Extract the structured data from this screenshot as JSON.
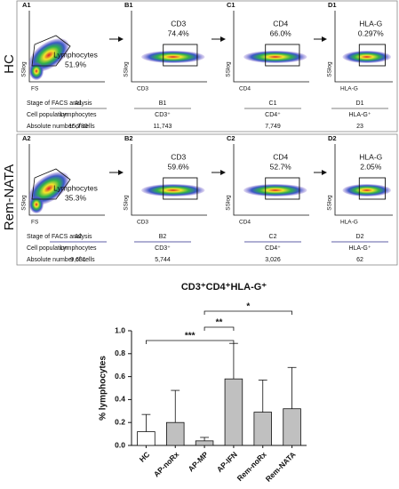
{
  "sections": [
    {
      "label": "HC",
      "plots": [
        {
          "id": "A1",
          "x_label": "FS",
          "y_label": "SSlog",
          "gate": "Lymphocytes",
          "percent": "51.9%"
        },
        {
          "id": "B1",
          "x_label": "CD3",
          "y_label": "SSlog",
          "gate": "CD3",
          "percent": "74.4%"
        },
        {
          "id": "C1",
          "x_label": "CD4",
          "y_label": "SSlog",
          "gate": "CD4",
          "percent": "66.0%"
        },
        {
          "id": "D1",
          "x_label": "HLA-G",
          "y_label": "SSlog",
          "gate": "HLA-G",
          "percent": "0.297%"
        }
      ],
      "table": [
        [
          "Stage of FACS analysis",
          "A1",
          "B1",
          "C1",
          "D1"
        ],
        [
          "Cell population",
          "Lymphocytes",
          "CD3⁺",
          "CD4⁺",
          "HLA-G⁺"
        ],
        [
          "Absolute number of cells",
          "15,780",
          "11,743",
          "7,749",
          "23"
        ]
      ]
    },
    {
      "label": "Rem-NATA",
      "plots": [
        {
          "id": "A2",
          "x_label": "FS",
          "y_label": "SSlog",
          "gate": "Lymphocytes",
          "percent": "35.3%"
        },
        {
          "id": "B2",
          "x_label": "CD3",
          "y_label": "SSlog",
          "gate": "CD3",
          "percent": "59.6%"
        },
        {
          "id": "C2",
          "x_label": "CD4",
          "y_label": "SSlog",
          "gate": "CD4",
          "percent": "52.7%"
        },
        {
          "id": "D2",
          "x_label": "HLA-G",
          "y_label": "SSlog",
          "gate": "HLA-G",
          "percent": "2.05%"
        }
      ],
      "table": [
        [
          "Stage of FACS analysis",
          "A2",
          "B2",
          "C2",
          "D2"
        ],
        [
          "Cell population",
          "Lymphocytes",
          "CD3⁺",
          "CD4⁺",
          "HLA-G⁺"
        ],
        [
          "Absolute number of cells",
          "9,631",
          "5,744",
          "3,026",
          "62"
        ]
      ]
    }
  ],
  "chart_data": {
    "type": "bar",
    "title": "CD3⁺CD4⁺HLA-G⁺",
    "y_label": "% lymphocytes",
    "categories": [
      "HC",
      "AP-noRx",
      "AP-MP",
      "AP-IFN",
      "Rem-noRx",
      "Rem-NATA"
    ],
    "values": [
      0.12,
      0.2,
      0.04,
      0.58,
      0.29,
      0.32
    ],
    "errors": [
      0.15,
      0.28,
      0.03,
      0.31,
      0.28,
      0.36
    ],
    "colors": [
      "#ffffff",
      "#c0c0c0",
      "#c0c0c0",
      "#c0c0c0",
      "#c0c0c0",
      "#c0c0c0"
    ],
    "ylim": [
      0,
      1
    ],
    "yticks": [
      {
        "value": 0,
        "label": "0.0"
      },
      {
        "value": 0.2,
        "label": "0.2"
      },
      {
        "value": 0.4,
        "label": "0.4"
      },
      {
        "value": 0.6,
        "label": "0.6"
      },
      {
        "value": 0.8,
        "label": "0.8"
      },
      {
        "value": 1,
        "label": "1.0"
      }
    ],
    "significance": [
      "***",
      "**",
      "*"
    ]
  }
}
